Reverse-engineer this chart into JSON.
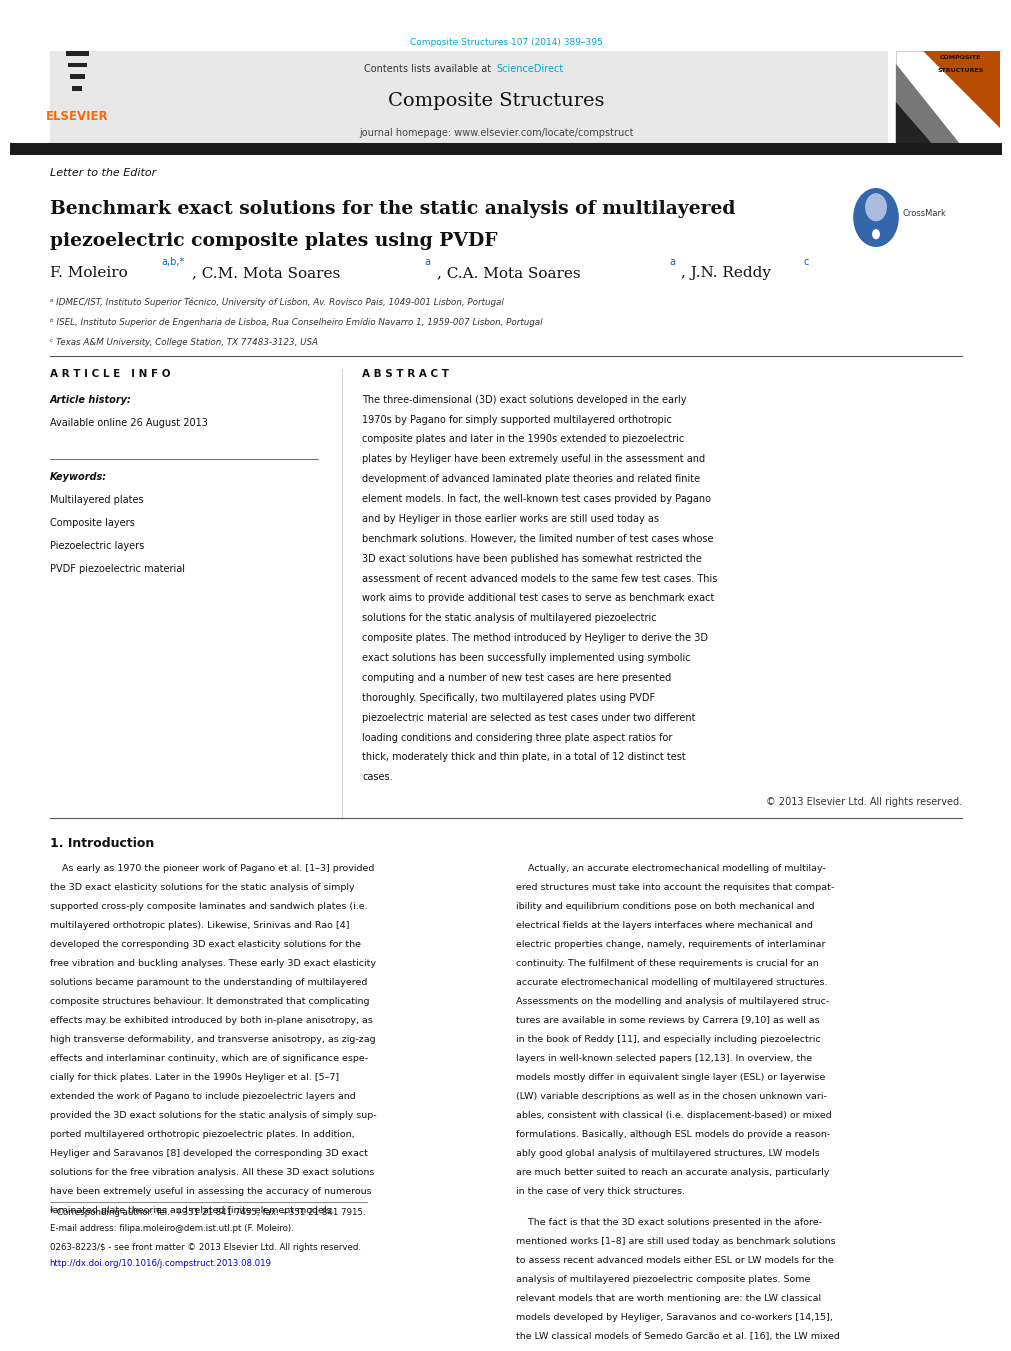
{
  "page_width": 9.92,
  "page_height": 13.23,
  "bg_color": "#ffffff",
  "journal_ref_color": "#00aacc",
  "journal_ref": "Composite Structures 107 (2014) 389–395",
  "sciencedirect_color": "#00aacc",
  "journal_name": "Composite Structures",
  "journal_homepage": "journal homepage: www.elsevier.com/locate/compstruct",
  "elsevier_color": "#ff6600",
  "elsevier_text": "ELSEVIER",
  "header_bg": "#e8e8e8",
  "section_label": "Letter to the Editor",
  "paper_title_line1": "Benchmark exact solutions for the static analysis of multilayered",
  "paper_title_line2": "piezoelectric composite plates using PVDF",
  "affil_a": "ᵃ IDMEC/IST, Instituto Superior Técnico, University of Lisbon, Av. Rovisco Pais, 1049-001 Lisbon, Portugal",
  "affil_b": "ᵇ ISEL, Instituto Superior de Engenharia de Lisboa, Rua Conselheiro Emídio Navarro 1, 1959-007 Lisbon, Portugal",
  "affil_c": "ᶜ Texas A&M University, College Station, TX 77483-3123, USA",
  "article_info_header": "A R T I C L E   I N F O",
  "abstract_header": "A B S T R A C T",
  "article_history_label": "Article history:",
  "available_online": "Available online 26 August 2013",
  "keywords_label": "Keywords:",
  "kw1": "Multilayered plates",
  "kw2": "Composite layers",
  "kw3": "Piezoelectric layers",
  "kw4": "PVDF piezoelectric material",
  "abstract_text": "The three-dimensional (3D) exact solutions developed in the early 1970s by Pagano for simply supported multilayered orthotropic composite plates and later in the 1990s extended to piezoelectric plates by Heyliger have been extremely useful in the assessment and development of advanced laminated plate theories and related finite element models. In fact, the well-known test cases provided by Pagano and by Heyliger in those earlier works are still used today as benchmark solutions. However, the limited number of test cases whose 3D exact solutions have been published has somewhat restricted the assessment of recent advanced models to the same few test cases. This work aims to provide additional test cases to serve as benchmark exact solutions for the static analysis of multilayered piezoelectric composite plates. The method introduced by Heyliger to derive the 3D exact solutions has been successfully implemented using symbolic computing and a number of new test cases are here presented thoroughly. Specifically, two multilayered plates using PVDF piezoelectric material are selected as test cases under two different loading conditions and considering three plate aspect ratios for thick, moderately thick and thin plate, in a total of 12 distinct test cases.",
  "copyright": "© 2013 Elsevier Ltd. All rights reserved.",
  "intro_header": "1. Introduction",
  "intro_col1_lines": [
    "    As early as 1970 the pioneer work of Pagano et al. [1–3] provided",
    "the 3D exact elasticity solutions for the static analysis of simply",
    "supported cross-ply composite laminates and sandwich plates (i.e.",
    "multilayered orthotropic plates). Likewise, Srinivas and Rao [4]",
    "developed the corresponding 3D exact elasticity solutions for the",
    "free vibration and buckling analyses. These early 3D exact elasticity",
    "solutions became paramount to the understanding of multilayered",
    "composite structures behaviour. It demonstrated that complicating",
    "effects may be exhibited introduced by both in-plane anisotropy, as",
    "high transverse deformability, and transverse anisotropy, as zig-zag",
    "effects and interlaminar continuity, which are of significance espe-",
    "cially for thick plates. Later in the 1990s Heyliger et al. [5–7]",
    "extended the work of Pagano to include piezoelectric layers and",
    "provided the 3D exact solutions for the static analysis of simply sup-",
    "ported multilayered orthotropic piezoelectric plates. In addition,",
    "Heyliger and Saravanos [8] developed the corresponding 3D exact",
    "solutions for the free vibration analysis. All these 3D exact solutions",
    "have been extremely useful in assessing the accuracy of numerous",
    "laminated plate theories and related finite element models."
  ],
  "intro_col2_lines": [
    "    Actually, an accurate electromechanical modelling of multilay-",
    "ered structures must take into account the requisites that compat-",
    "ibility and equilibrium conditions pose on both mechanical and",
    "electrical fields at the layers interfaces where mechanical and",
    "electric properties change, namely, requirements of interlaminar",
    "continuity. The fulfilment of these requirements is crucial for an",
    "accurate electromechanical modelling of multilayered structures.",
    "Assessments on the modelling and analysis of multilayered struc-",
    "tures are available in some reviews by Carrera [9,10] as well as",
    "in the book of Reddy [11], and especially including piezoelectric",
    "layers in well-known selected papers [12,13]. In overview, the",
    "models mostly differ in equivalent single layer (ESL) or layerwise",
    "(LW) variable descriptions as well as in the chosen unknown vari-",
    "ables, consistent with classical (i.e. displacement-based) or mixed",
    "formulations. Basically, although ESL models do provide a reason-",
    "ably good global analysis of multilayered structures, LW models",
    "are much better suited to reach an accurate analysis, particularly",
    "in the case of very thick structures."
  ],
  "intro_col2b_lines": [
    "    The fact is that the 3D exact solutions presented in the afore-",
    "mentioned works [1–8] are still used today as benchmark solutions",
    "to assess recent advanced models either ESL or LW models for the",
    "analysis of multilayered piezoelectric composite plates. Some",
    "relevant models that are worth mentioning are: the LW classical",
    "models developed by Heyliger, Saravanos and co-workers [14,15],",
    "the LW classical models of Semedo Garcão et al. [16], the LW mixed"
  ],
  "footer_note": "* Corresponding author. Tel.: +351 21 841 7455; fax: +351 21 841 7915.",
  "footer_email": "E-mail address: filipa.moleiro@dem.ist.utl.pt (F. Moleiro).",
  "footer_issn": "0263-8223/$ - see front matter © 2013 Elsevier Ltd. All rights reserved.",
  "footer_doi": "http://dx.doi.org/10.1016/j.compstruct.2013.08.019",
  "footer_doi_color": "#0000cc"
}
